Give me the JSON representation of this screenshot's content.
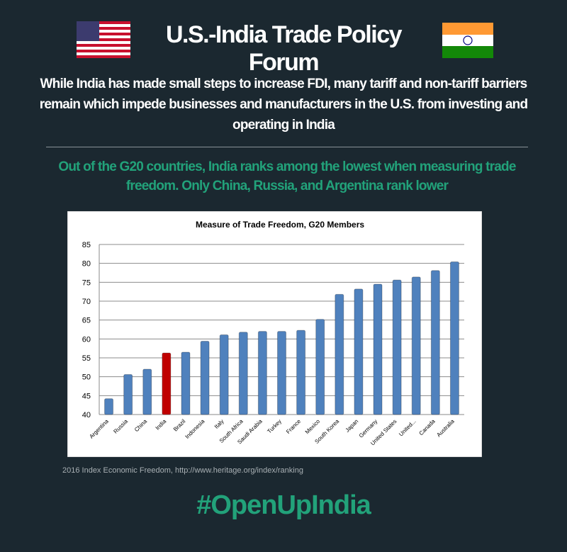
{
  "header": {
    "title": "U.S.-India Trade Policy Forum"
  },
  "subtitle": "While India has made small steps to increase FDI, many tariff and non-tariff barriers remain which impede businesses and manufacturers in the U.S. from investing and operating in India",
  "finding": "Out of the G20 countries, India ranks among the lowest when measuring  trade freedom. Only China, Russia, and Argentina rank lower",
  "chart_data": {
    "type": "bar",
    "title": "Measure of Trade Freedom, G20 Members",
    "categories": [
      "Argentina",
      "Russia",
      "China",
      "India",
      "Brazil",
      "Indonesia",
      "Italy",
      "South Africa",
      "Saudi Arabia",
      "Turkey",
      "France",
      "Mexico",
      "South Korea",
      "Japan",
      "Germany",
      "United States",
      "United...",
      "Canada",
      "Australia"
    ],
    "values": [
      44.2,
      50.6,
      52.0,
      56.3,
      56.5,
      59.4,
      61.1,
      61.8,
      62.0,
      62.0,
      62.3,
      65.2,
      71.8,
      73.2,
      74.5,
      75.6,
      76.4,
      78.1,
      80.4
    ],
    "colors": [
      "#4f81bd",
      "#4f81bd",
      "#4f81bd",
      "#c00000",
      "#4f81bd",
      "#4f81bd",
      "#4f81bd",
      "#4f81bd",
      "#4f81bd",
      "#4f81bd",
      "#4f81bd",
      "#4f81bd",
      "#4f81bd",
      "#4f81bd",
      "#4f81bd",
      "#4f81bd",
      "#4f81bd",
      "#4f81bd",
      "#4f81bd"
    ],
    "ylim": [
      40,
      85
    ],
    "yticks": [
      40,
      45,
      50,
      55,
      60,
      65,
      70,
      75,
      80,
      85
    ],
    "grid": true
  },
  "source": "2016 Index Economic Freedom, http://www.heritage.org/index/ranking",
  "hashtag": "#OpenUpIndia"
}
